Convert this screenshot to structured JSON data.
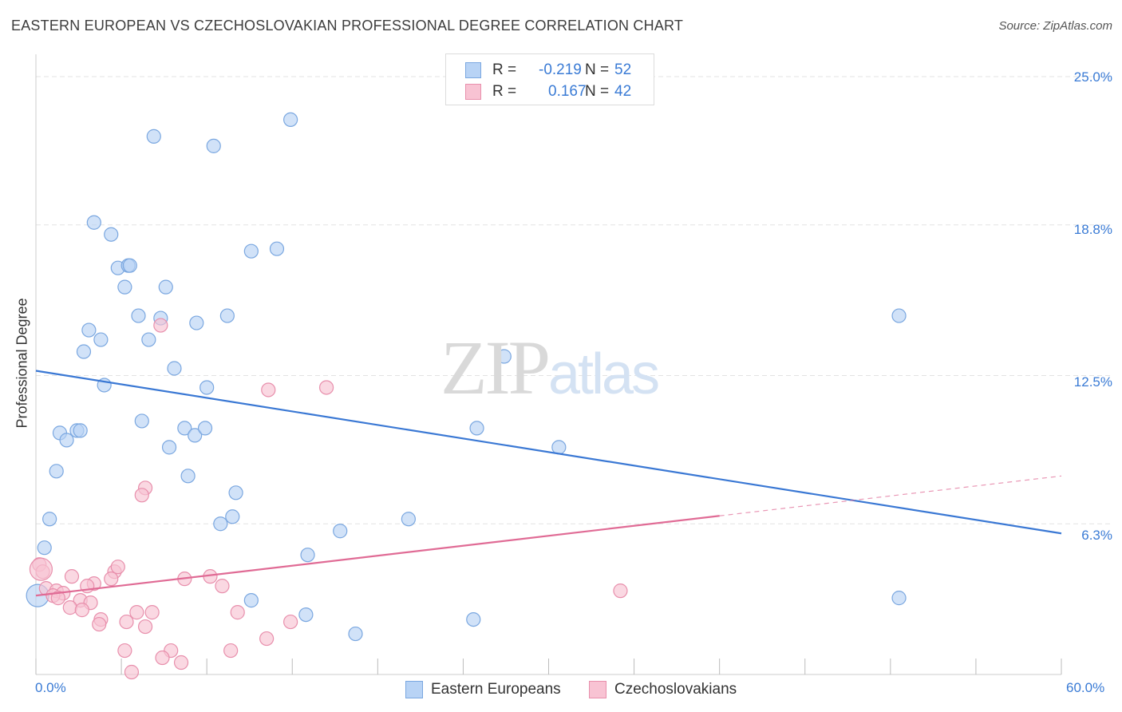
{
  "header": {
    "title": "EASTERN EUROPEAN VS CZECHOSLOVAKIAN PROFESSIONAL DEGREE CORRELATION CHART",
    "source": "Source: ZipAtlas.com"
  },
  "watermark": {
    "zip": "ZIP",
    "atlas": "atlas"
  },
  "legend": {
    "rows": [
      {
        "r_label": "R =",
        "r_value": "-0.219",
        "n_label": "N =",
        "n_value": "52"
      },
      {
        "r_label": "R =",
        "r_value": "0.167",
        "n_label": "N =",
        "n_value": "42"
      }
    ]
  },
  "bottom_legend": {
    "series1": "Eastern Europeans",
    "series2": "Czechoslovakians"
  },
  "axes": {
    "ylabel": "Professional Degree",
    "y_ticks": [
      "25.0%",
      "18.8%",
      "12.5%",
      "6.3%"
    ],
    "x_min_label": "0.0%",
    "x_max_label": "60.0%"
  },
  "colors": {
    "blue_fill": "#b8d3f5",
    "blue_stroke": "#7aa7e0",
    "blue_line": "#3a78d4",
    "pink_fill": "#f8c3d3",
    "pink_stroke": "#e88fac",
    "pink_line": "#e06b95",
    "grid": "#e3e3e3",
    "tick_text": "#3a7bd5"
  },
  "chart_data": {
    "type": "scatter",
    "xlim": [
      0,
      60
    ],
    "ylim": [
      0,
      25.6
    ],
    "y_gridlines": [
      6.3,
      12.5,
      18.8,
      25.0
    ],
    "series": [
      {
        "name": "Eastern Europeans",
        "r": -0.219,
        "n": 52,
        "trend": {
          "x": [
            0,
            60
          ],
          "y": [
            12.7,
            5.9
          ],
          "dashed_from": null
        },
        "points": [
          [
            14.9,
            23.2
          ],
          [
            6.9,
            22.5
          ],
          [
            10.4,
            22.1
          ],
          [
            3.4,
            18.9
          ],
          [
            4.4,
            18.4
          ],
          [
            12.6,
            17.7
          ],
          [
            14.1,
            17.8
          ],
          [
            4.8,
            17.0
          ],
          [
            5.4,
            17.1
          ],
          [
            5.5,
            17.1
          ],
          [
            5.2,
            16.2
          ],
          [
            7.6,
            16.2
          ],
          [
            6.0,
            15.0
          ],
          [
            7.3,
            14.9
          ],
          [
            11.2,
            15.0
          ],
          [
            9.4,
            14.7
          ],
          [
            3.1,
            14.4
          ],
          [
            3.8,
            14.0
          ],
          [
            6.6,
            14.0
          ],
          [
            2.8,
            13.5
          ],
          [
            8.1,
            12.8
          ],
          [
            27.4,
            13.3
          ],
          [
            50.5,
            15.0
          ],
          [
            4.0,
            12.1
          ],
          [
            10.0,
            12.0
          ],
          [
            6.2,
            10.6
          ],
          [
            1.4,
            10.1
          ],
          [
            2.4,
            10.2
          ],
          [
            2.6,
            10.2
          ],
          [
            8.7,
            10.3
          ],
          [
            9.3,
            10.0
          ],
          [
            9.9,
            10.3
          ],
          [
            25.8,
            10.3
          ],
          [
            1.8,
            9.8
          ],
          [
            7.8,
            9.5
          ],
          [
            30.6,
            9.5
          ],
          [
            1.2,
            8.5
          ],
          [
            8.9,
            8.3
          ],
          [
            11.7,
            7.6
          ],
          [
            0.8,
            6.5
          ],
          [
            11.5,
            6.6
          ],
          [
            10.8,
            6.3
          ],
          [
            17.8,
            6.0
          ],
          [
            21.8,
            6.5
          ],
          [
            0.5,
            5.3
          ],
          [
            15.9,
            5.0
          ],
          [
            50.5,
            3.2
          ],
          [
            12.6,
            3.1
          ],
          [
            15.8,
            2.5
          ],
          [
            25.6,
            2.3
          ],
          [
            18.7,
            1.7
          ],
          [
            0.1,
            3.3
          ]
        ]
      },
      {
        "name": "Czechoslovakians",
        "r": 0.167,
        "n": 42,
        "trend": {
          "x": [
            0,
            60
          ],
          "y": [
            3.3,
            8.3
          ],
          "dashed_from": 40
        },
        "points": [
          [
            7.3,
            14.6
          ],
          [
            13.6,
            11.9
          ],
          [
            17.0,
            12.0
          ],
          [
            6.4,
            7.8
          ],
          [
            6.2,
            7.5
          ],
          [
            0.2,
            4.6
          ],
          [
            0.4,
            4.3
          ],
          [
            2.1,
            4.1
          ],
          [
            4.6,
            4.3
          ],
          [
            4.8,
            4.5
          ],
          [
            8.7,
            4.0
          ],
          [
            10.2,
            4.1
          ],
          [
            3.4,
            3.8
          ],
          [
            3.0,
            3.7
          ],
          [
            4.4,
            4.0
          ],
          [
            10.9,
            3.7
          ],
          [
            0.6,
            3.6
          ],
          [
            1.2,
            3.5
          ],
          [
            1.6,
            3.4
          ],
          [
            1.0,
            3.3
          ],
          [
            1.3,
            3.2
          ],
          [
            2.6,
            3.1
          ],
          [
            3.2,
            3.0
          ],
          [
            2.0,
            2.8
          ],
          [
            2.7,
            2.7
          ],
          [
            34.2,
            3.5
          ],
          [
            5.9,
            2.6
          ],
          [
            6.8,
            2.6
          ],
          [
            11.8,
            2.6
          ],
          [
            3.8,
            2.3
          ],
          [
            5.3,
            2.2
          ],
          [
            14.9,
            2.2
          ],
          [
            3.7,
            2.1
          ],
          [
            6.4,
            2.0
          ],
          [
            13.5,
            1.5
          ],
          [
            5.2,
            1.0
          ],
          [
            7.9,
            1.0
          ],
          [
            11.4,
            1.0
          ],
          [
            7.4,
            0.7
          ],
          [
            8.5,
            0.5
          ],
          [
            5.6,
            0.1
          ],
          [
            0.3,
            4.4
          ]
        ]
      }
    ]
  }
}
